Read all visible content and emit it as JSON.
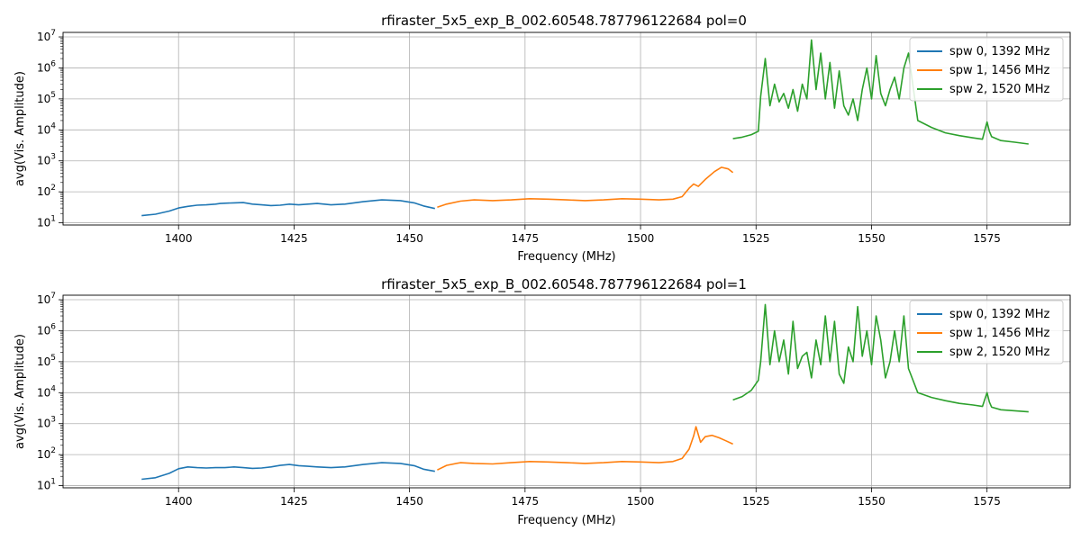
{
  "chart_data": [
    {
      "type": "line",
      "title": "rfiraster_5x5_exp_B_002.60548.787796122684 pol=0",
      "xlabel": "Frequency (MHz)",
      "ylabel": "avg(Vis. Amplitude)",
      "xscale": "linear",
      "yscale": "log",
      "xlim": [
        1375,
        1593
      ],
      "ylim": [
        8.5,
        14000000
      ],
      "xticks": [
        1400,
        1425,
        1450,
        1475,
        1500,
        1525,
        1550,
        1575
      ],
      "yticks_exponent": [
        1,
        2,
        3,
        4,
        5,
        6,
        7
      ],
      "grid": true,
      "legend_position": "top-right",
      "series": [
        {
          "name": "spw 0, 1392 MHz",
          "color": "#1f77b4",
          "x": [
            1392,
            1395,
            1398,
            1400,
            1402,
            1404,
            1406,
            1408,
            1409,
            1410,
            1412,
            1414,
            1416,
            1418,
            1420,
            1422,
            1424,
            1426,
            1428,
            1430,
            1433,
            1436,
            1440,
            1444,
            1448,
            1451,
            1453,
            1455.5
          ],
          "y": [
            17,
            19,
            24,
            30,
            34,
            37,
            38,
            40,
            42,
            43,
            44,
            45,
            40,
            38,
            36,
            37,
            40,
            38,
            40,
            42,
            38,
            40,
            48,
            55,
            52,
            44,
            35,
            29
          ]
        },
        {
          "name": "spw 1, 1456 MHz",
          "color": "#ff7f0e",
          "x": [
            1456,
            1458,
            1461,
            1464,
            1468,
            1472,
            1476,
            1480,
            1484,
            1488,
            1492,
            1496,
            1500,
            1504,
            1507,
            1509,
            1510.5,
            1511.5,
            1512.5,
            1514,
            1516,
            1517.5,
            1519,
            1520
          ],
          "y": [
            32,
            40,
            50,
            55,
            52,
            55,
            60,
            58,
            55,
            52,
            55,
            60,
            58,
            55,
            58,
            70,
            130,
            180,
            150,
            250,
            450,
            620,
            550,
            420
          ]
        },
        {
          "name": "spw 2, 1520 MHz",
          "color": "#2ca02c",
          "x": [
            1520,
            1522,
            1524,
            1525.5,
            1526,
            1527,
            1528,
            1529,
            1530,
            1531,
            1532,
            1533,
            1534,
            1535,
            1536,
            1537,
            1538,
            1539,
            1540,
            1541,
            1542,
            1543,
            1544,
            1545,
            1546,
            1547,
            1548,
            1549,
            1550,
            1551,
            1552,
            1553,
            1554,
            1555,
            1556,
            1557,
            1558,
            1560,
            1563,
            1566,
            1569,
            1572,
            1574,
            1575,
            1575.5,
            1576,
            1578,
            1581,
            1584
          ],
          "y": [
            5200,
            5800,
            7000,
            9000,
            120000,
            2000000,
            60000,
            300000,
            80000,
            150000,
            50000,
            200000,
            40000,
            300000,
            100000,
            8000000,
            200000,
            3000000,
            100000,
            1500000,
            50000,
            800000,
            60000,
            30000,
            100000,
            20000,
            200000,
            1000000,
            100000,
            2500000,
            150000,
            60000,
            200000,
            500000,
            100000,
            1000000,
            3000000,
            20000,
            12000,
            8000,
            6500,
            5500,
            5000,
            18000,
            9000,
            6000,
            4500,
            4000,
            3500
          ]
        }
      ]
    },
    {
      "type": "line",
      "title": "rfiraster_5x5_exp_B_002.60548.787796122684 pol=1",
      "xlabel": "Frequency (MHz)",
      "ylabel": "avg(Vis. Amplitude)",
      "xscale": "linear",
      "yscale": "log",
      "xlim": [
        1375,
        1593
      ],
      "ylim": [
        8.5,
        14000000
      ],
      "xticks": [
        1400,
        1425,
        1450,
        1475,
        1500,
        1525,
        1550,
        1575
      ],
      "yticks_exponent": [
        1,
        2,
        3,
        4,
        5,
        6,
        7
      ],
      "grid": true,
      "legend_position": "top-right",
      "series": [
        {
          "name": "spw 0, 1392 MHz",
          "color": "#1f77b4",
          "x": [
            1392,
            1395,
            1398,
            1400,
            1402,
            1404,
            1406,
            1408,
            1410,
            1412,
            1414,
            1416,
            1418,
            1420,
            1422,
            1424,
            1426,
            1428,
            1430,
            1433,
            1436,
            1440,
            1444,
            1448,
            1451,
            1453,
            1455.5
          ],
          "y": [
            16,
            18,
            25,
            35,
            40,
            38,
            37,
            38,
            38,
            40,
            38,
            36,
            37,
            40,
            45,
            48,
            44,
            42,
            40,
            38,
            40,
            48,
            55,
            52,
            44,
            34,
            29
          ]
        },
        {
          "name": "spw 1, 1456 MHz",
          "color": "#ff7f0e",
          "x": [
            1456,
            1458,
            1461,
            1464,
            1468,
            1472,
            1476,
            1480,
            1484,
            1488,
            1492,
            1496,
            1500,
            1504,
            1507,
            1509,
            1510.5,
            1511.5,
            1512,
            1513,
            1514,
            1515.5,
            1517,
            1518.5,
            1520
          ],
          "y": [
            32,
            45,
            55,
            52,
            50,
            55,
            60,
            58,
            55,
            52,
            55,
            60,
            58,
            55,
            60,
            75,
            150,
            400,
            800,
            250,
            380,
            420,
            350,
            280,
            220
          ]
        },
        {
          "name": "spw 2, 1520 MHz",
          "color": "#2ca02c",
          "x": [
            1520,
            1522,
            1524,
            1525.5,
            1526,
            1527,
            1528,
            1529,
            1530,
            1531,
            1532,
            1533,
            1534,
            1535,
            1536,
            1537,
            1538,
            1539,
            1540,
            1541,
            1542,
            1543,
            1544,
            1545,
            1546,
            1547,
            1548,
            1549,
            1550,
            1551,
            1552,
            1553,
            1554,
            1555,
            1556,
            1557,
            1558,
            1560,
            1563,
            1566,
            1569,
            1572,
            1574,
            1575,
            1575.5,
            1576,
            1578,
            1581,
            1584
          ],
          "y": [
            5800,
            7500,
            12000,
            25000,
            100000,
            7000000,
            80000,
            1000000,
            100000,
            500000,
            40000,
            2000000,
            60000,
            150000,
            200000,
            30000,
            500000,
            80000,
            3000000,
            100000,
            2000000,
            40000,
            20000,
            300000,
            100000,
            6000000,
            150000,
            1000000,
            80000,
            3000000,
            500000,
            30000,
            100000,
            1000000,
            100000,
            3000000,
            60000,
            10000,
            7000,
            5500,
            4500,
            4000,
            3600,
            10000,
            5000,
            3400,
            2800,
            2600,
            2400
          ]
        }
      ]
    }
  ]
}
